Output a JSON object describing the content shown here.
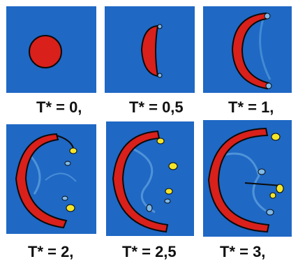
{
  "colors": {
    "background": "#1f68c4",
    "droplet": "#d9201b",
    "outline": "#0b0b0b",
    "vortex": "#7fb9e8",
    "hot": "#f5e52a"
  },
  "frames": [
    {
      "label": "T* = 0,"
    },
    {
      "label": "T* = 0,5"
    },
    {
      "label": "T* = 1,"
    },
    {
      "label": "T* = 2,"
    },
    {
      "label": "T* = 2,5"
    },
    {
      "label": "T* = 3,"
    }
  ]
}
